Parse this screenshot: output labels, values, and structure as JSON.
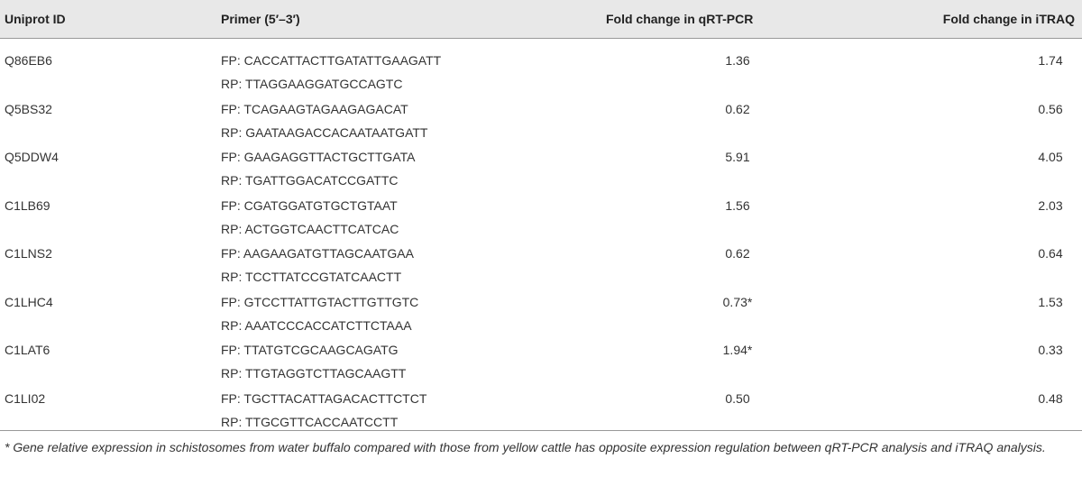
{
  "table": {
    "headers": [
      "Uniprot ID",
      "Primer (5′–3′)",
      "Fold change in qRT-PCR",
      "Fold change in iTRAQ"
    ],
    "rows": [
      [
        "Q86EB6",
        "FP: CACCATTACTTGATATTGAAGATT",
        "RP: TTAGGAAGGATGCCAGTC",
        "1.36",
        "1.74"
      ],
      [
        "Q5BS32",
        "FP: TCAGAAGTAGAAGAGACAT",
        "RP: GAATAAGACCACAATAATGATT",
        "0.62",
        "0.56"
      ],
      [
        "Q5DDW4",
        "FP: GAAGAGGTTACTGCTTGATA",
        "RP: TGATTGGACATCCGATTC",
        "5.91",
        "4.05"
      ],
      [
        "C1LB69",
        "FP: CGATGGATGTGCTGTAAT",
        "RP: ACTGGTCAACTTCATCAC",
        "1.56",
        "2.03"
      ],
      [
        "C1LNS2",
        "FP: AAGAAGATGTTAGCAATGAA",
        "RP: TCCTTATCCGTATCAACTT",
        "0.62",
        "0.64"
      ],
      [
        "C1LHC4",
        "FP: GTCCTTATTGTACTTGTTGTC",
        "RP: AAATCCCACCATCTTCTAAA",
        "0.73*",
        "1.53"
      ],
      [
        "C1LAT6",
        "FP: TTATGTCGCAAGCAGATG",
        "RP: TTGTAGGTCTTAGCAAGTT",
        "1.94*",
        "0.33"
      ],
      [
        "C1LI02",
        "FP: TGCTTACATTAGACACTTCTCT",
        "RP: TTGCGTTCACCAATCCTT",
        "0.50",
        "0.48"
      ]
    ],
    "footnote": "* Gene relative expression in schistosomes from water buffalo compared with those from yellow cattle has opposite expression regulation between qRT-PCR analysis and iTRAQ analysis."
  }
}
